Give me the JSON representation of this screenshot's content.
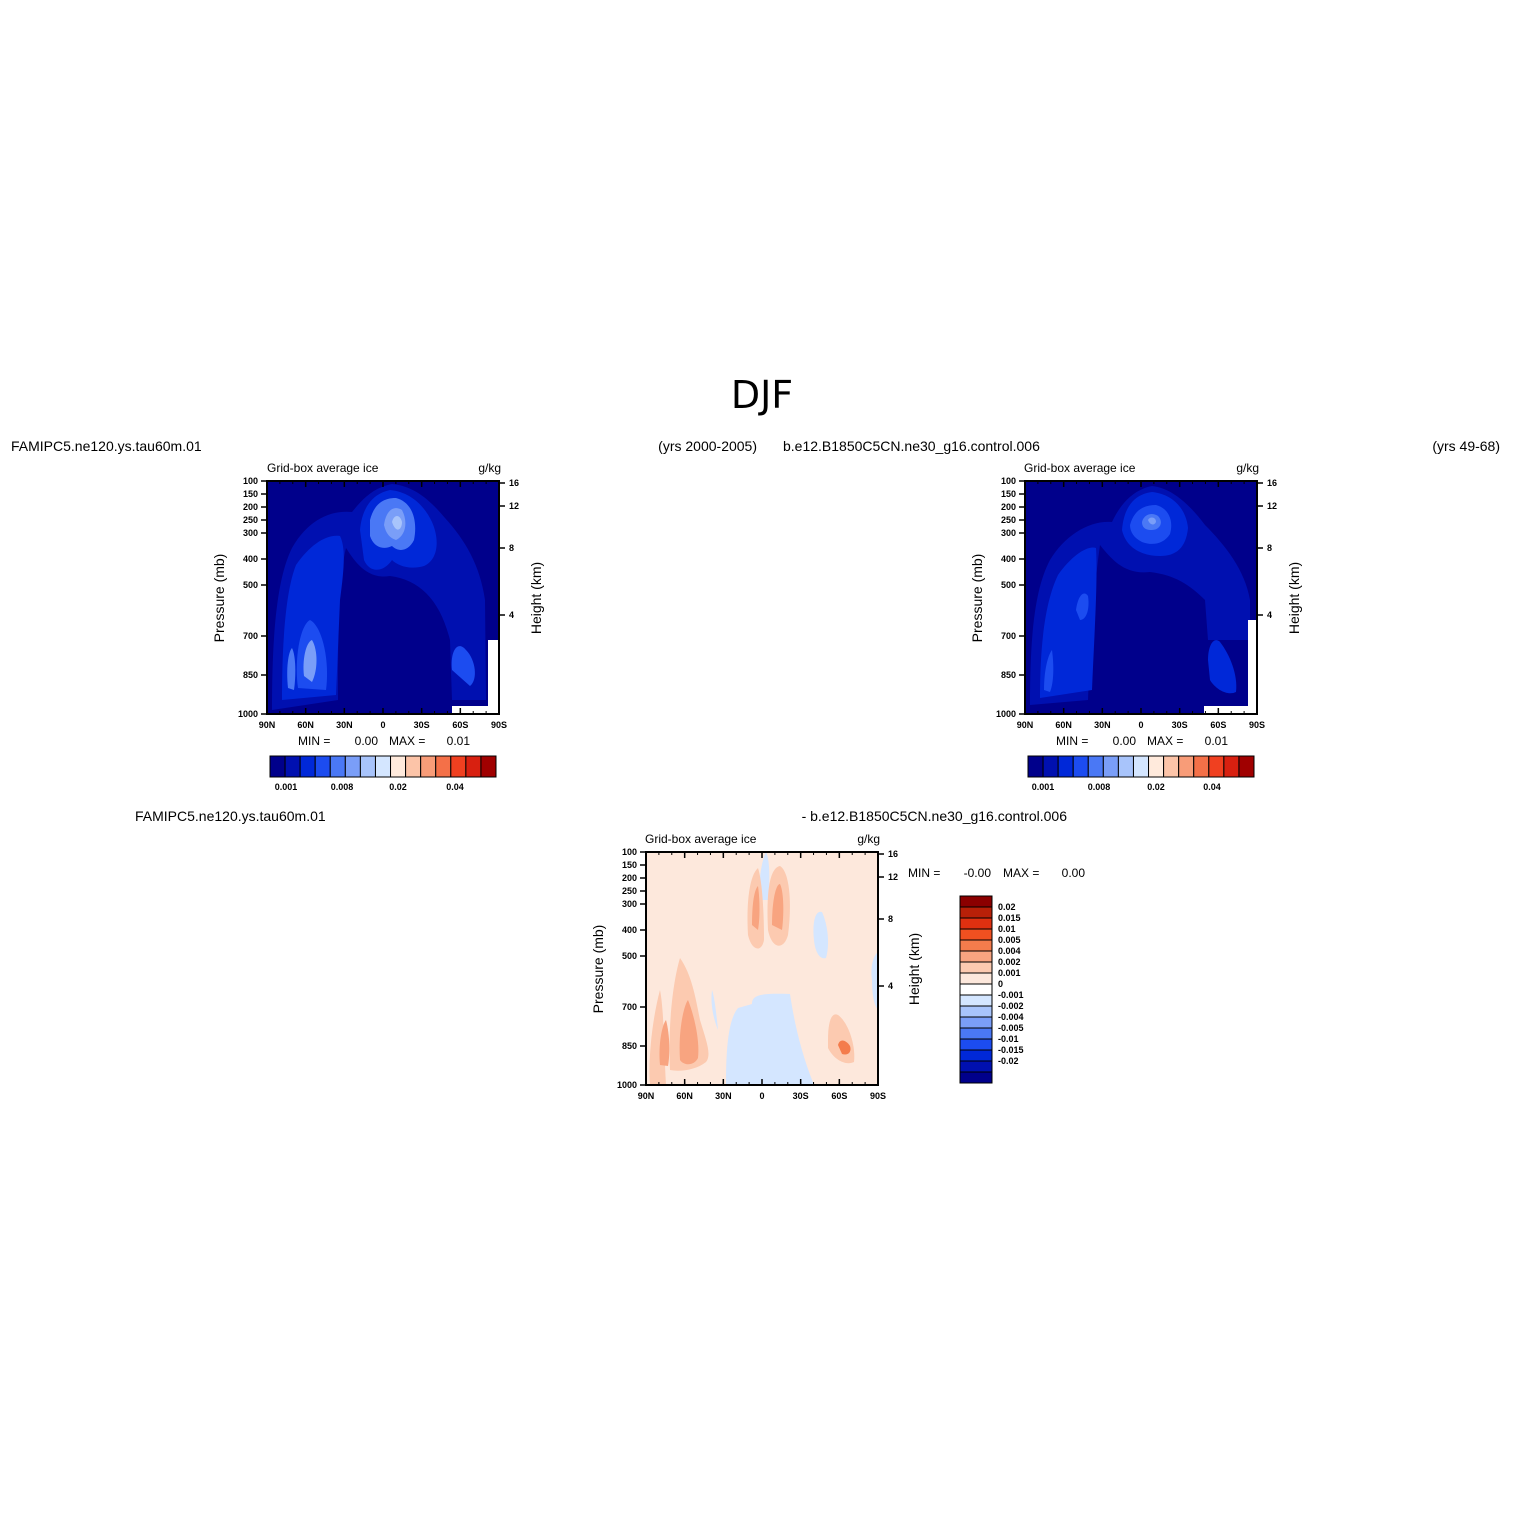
{
  "figure": {
    "title": "DJF"
  },
  "colors": {
    "abs_palette": [
      "#00008b",
      "#0010b0",
      "#0028d8",
      "#1c4cf0",
      "#4a78f5",
      "#7a9ef8",
      "#a8c4fb",
      "#d4e6ff",
      "#ffeadc",
      "#fcc4a8",
      "#f89c78",
      "#f47048",
      "#f04020",
      "#d82010",
      "#a00000"
    ],
    "diff_palette": [
      "#8b0000",
      "#b82008",
      "#e03010",
      "#f05020",
      "#f47c4c",
      "#f8a480",
      "#fccab0",
      "#fde8dc",
      "#ffffff",
      "#d4e6ff",
      "#a8c4fb",
      "#7a9ef8",
      "#4a78f5",
      "#1c4cf0",
      "#0028d8",
      "#0010b0",
      "#00008b"
    ]
  },
  "panels": [
    {
      "case_left": "FAMIPC5.ne120.ys.tau60m.01",
      "case_right": "(yrs 2000-2005)",
      "variable": "Grid-box average ice",
      "units": "g/kg",
      "ylabel_left": "Pressure (mb)",
      "ylabel_right": "Height (km)",
      "min_label": "MIN =",
      "min_value": "0.00",
      "max_label": "MAX =",
      "max_value": "0.01",
      "colorbar_labels": [
        "0.001",
        "0.008",
        "0.02",
        "0.04"
      ]
    },
    {
      "case_left": "b.e12.B1850C5CN.ne30_g16.control.006",
      "case_right": "(yrs 49-68)",
      "variable": "Grid-box average ice",
      "units": "g/kg",
      "ylabel_left": "Pressure (mb)",
      "ylabel_right": "Height (km)",
      "min_label": "MIN =",
      "min_value": "0.00",
      "max_label": "MAX =",
      "max_value": "0.01",
      "colorbar_labels": [
        "0.001",
        "0.008",
        "0.02",
        "0.04"
      ]
    },
    {
      "case_left": "FAMIPC5.ne120.ys.tau60m.01",
      "case_right": "- b.e12.B1850C5CN.ne30_g16.control.006",
      "variable": "Grid-box average ice",
      "units": "g/kg",
      "ylabel_left": "Pressure (mb)",
      "ylabel_right": "Height (km)",
      "min_label": "MIN =",
      "min_value": "-0.00",
      "max_label": "MAX =",
      "max_value": "0.00",
      "colorbar_labels": [
        "0.02",
        "0.015",
        "0.01",
        "0.005",
        "0.004",
        "0.002",
        "0.001",
        "0",
        "-0.001",
        "-0.002",
        "-0.004",
        "-0.005",
        "-0.01",
        "-0.015",
        "-0.02"
      ]
    }
  ],
  "chart_data": [
    {
      "type": "heatmap",
      "title": "Grid-box average ice",
      "units": "g/kg",
      "ylabel": "Pressure (mb)",
      "ylabel_right": "Height (km)",
      "x_ticks": [
        "90N",
        "60N",
        "30N",
        "0",
        "30S",
        "60S",
        "90S"
      ],
      "y_ticks": [
        "100",
        "150",
        "200",
        "250",
        "300",
        "400",
        "500",
        "700",
        "850",
        "1000"
      ],
      "y_right_ticks": [
        "16",
        "12",
        "8",
        "4"
      ],
      "levels": [
        0.001,
        0.002,
        0.004,
        0.006,
        0.008,
        0.01,
        0.012,
        0.015,
        0.02,
        0.025,
        0.03,
        0.04,
        0.05,
        0.06
      ],
      "min": 0.0,
      "max": 0.01
    },
    {
      "type": "heatmap",
      "title": "Grid-box average ice",
      "units": "g/kg",
      "ylabel": "Pressure (mb)",
      "ylabel_right": "Height (km)",
      "x_ticks": [
        "90N",
        "60N",
        "30N",
        "0",
        "30S",
        "60S",
        "90S"
      ],
      "y_ticks": [
        "100",
        "150",
        "200",
        "250",
        "300",
        "400",
        "500",
        "700",
        "850",
        "1000"
      ],
      "y_right_ticks": [
        "16",
        "12",
        "8",
        "4"
      ],
      "levels": [
        0.001,
        0.002,
        0.004,
        0.006,
        0.008,
        0.01,
        0.012,
        0.015,
        0.02,
        0.025,
        0.03,
        0.04,
        0.05,
        0.06
      ],
      "min": 0.0,
      "max": 0.01
    },
    {
      "type": "heatmap",
      "title": "Grid-box average ice",
      "units": "g/kg",
      "ylabel": "Pressure (mb)",
      "ylabel_right": "Height (km)",
      "x_ticks": [
        "90N",
        "60N",
        "30N",
        "0",
        "30S",
        "60S",
        "90S"
      ],
      "y_ticks": [
        "100",
        "150",
        "200",
        "250",
        "300",
        "400",
        "500",
        "700",
        "850",
        "1000"
      ],
      "y_right_ticks": [
        "16",
        "12",
        "8",
        "4"
      ],
      "levels": [
        0.02,
        0.015,
        0.01,
        0.005,
        0.004,
        0.002,
        0.001,
        0,
        -0.001,
        -0.002,
        -0.004,
        -0.005,
        -0.01,
        -0.015,
        -0.02
      ],
      "min": -0.0,
      "max": 0.0
    }
  ]
}
